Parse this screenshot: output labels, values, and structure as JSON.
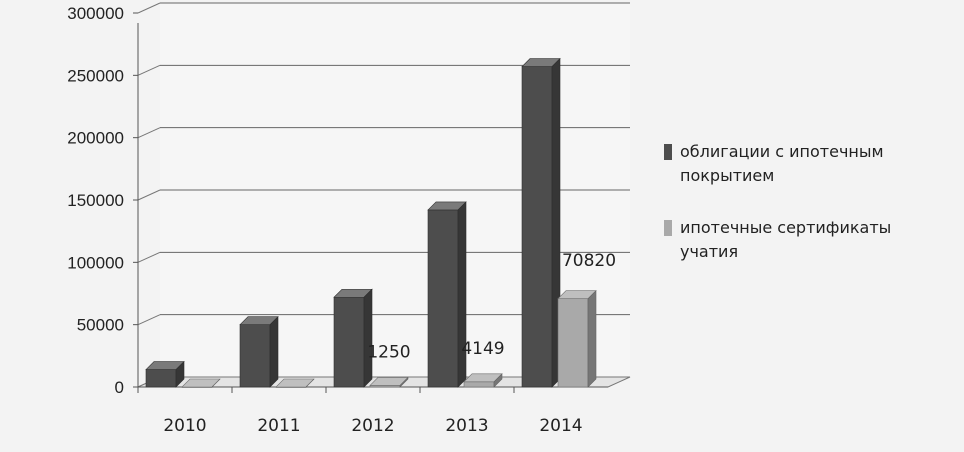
{
  "chart_data": {
    "type": "bar",
    "categories": [
      "2010",
      "2011",
      "2012",
      "2013",
      "2014"
    ],
    "series": [
      {
        "name": "облигации с ипотечным покрытием",
        "values": [
          14000,
          50000,
          72000,
          142000,
          257000
        ],
        "color": "#4d4d4d"
      },
      {
        "name": "ипотечные сертификаты учатия",
        "values": [
          0,
          0,
          1250,
          4149,
          70820
        ],
        "color": "#a9a9a9"
      }
    ],
    "data_labels": [
      "1250",
      "4149",
      "70820"
    ],
    "y_ticks": [
      "0",
      "50000",
      "100000",
      "150000",
      "200000",
      "250000",
      "300000"
    ],
    "ylim": [
      0,
      300000
    ],
    "grid": true,
    "legend_position": "right",
    "title": "",
    "xlabel": "",
    "ylabel": ""
  }
}
